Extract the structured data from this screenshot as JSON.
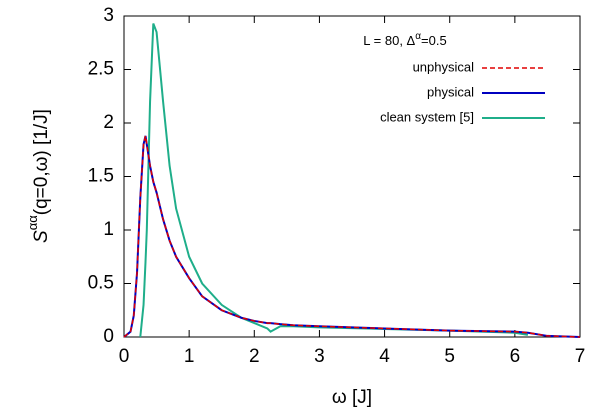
{
  "chart_data": {
    "type": "line",
    "ylabel_parts": [
      "S",
      "αα",
      "(q=0,ω) [1/J]"
    ],
    "xlabel": "ω [J]",
    "annotation_parts": [
      "L = 80, Δ",
      "α",
      "=0.5"
    ],
    "x": [
      0,
      0.1,
      0.15,
      0.2,
      0.25,
      0.3,
      0.33,
      0.35,
      0.4,
      0.45,
      0.5,
      0.6,
      0.7,
      0.8,
      1.0,
      1.2,
      1.5,
      1.8,
      2.0,
      2.2,
      2.25,
      2.4,
      2.6,
      3,
      4,
      5,
      6,
      6.2,
      6.5,
      7
    ],
    "series": [
      {
        "name": "unphysical",
        "color": "#e00000",
        "dashed": true,
        "values": [
          0,
          0.05,
          0.2,
          0.6,
          1.3,
          1.8,
          1.88,
          1.8,
          1.6,
          1.45,
          1.35,
          1.1,
          0.9,
          0.75,
          0.55,
          0.38,
          0.25,
          0.18,
          0.15,
          0.13,
          0.13,
          0.12,
          0.11,
          0.1,
          0.08,
          0.06,
          0.05,
          0.04,
          0.01,
          0
        ]
      },
      {
        "name": "physical",
        "color": "#0000c0",
        "dashed": false,
        "values": [
          0,
          0.05,
          0.2,
          0.6,
          1.3,
          1.8,
          1.88,
          1.8,
          1.6,
          1.45,
          1.35,
          1.1,
          0.9,
          0.75,
          0.55,
          0.38,
          0.25,
          0.18,
          0.15,
          0.13,
          0.13,
          0.12,
          0.11,
          0.1,
          0.08,
          0.06,
          0.05,
          0.04,
          0.01,
          0
        ]
      },
      {
        "name": "clean system [5]",
        "color": "#1fae8a",
        "dashed": false,
        "values": [
          null,
          null,
          null,
          null,
          0,
          0.3,
          0.7,
          1.0,
          2.2,
          2.93,
          2.85,
          2.2,
          1.6,
          1.2,
          0.75,
          0.5,
          0.3,
          0.18,
          0.13,
          0.08,
          0.05,
          0.1,
          0.1,
          0.09,
          0.075,
          0.06,
          0.04,
          0.02,
          null,
          null
        ]
      }
    ],
    "xlim": [
      0,
      7
    ],
    "xticks": [
      0,
      1,
      2,
      3,
      4,
      5,
      6,
      7
    ],
    "ylim": [
      0,
      3
    ],
    "yticks": [
      0,
      0.5,
      1,
      1.5,
      2,
      2.5,
      3
    ],
    "grid": false,
    "legend": "top-right"
  }
}
